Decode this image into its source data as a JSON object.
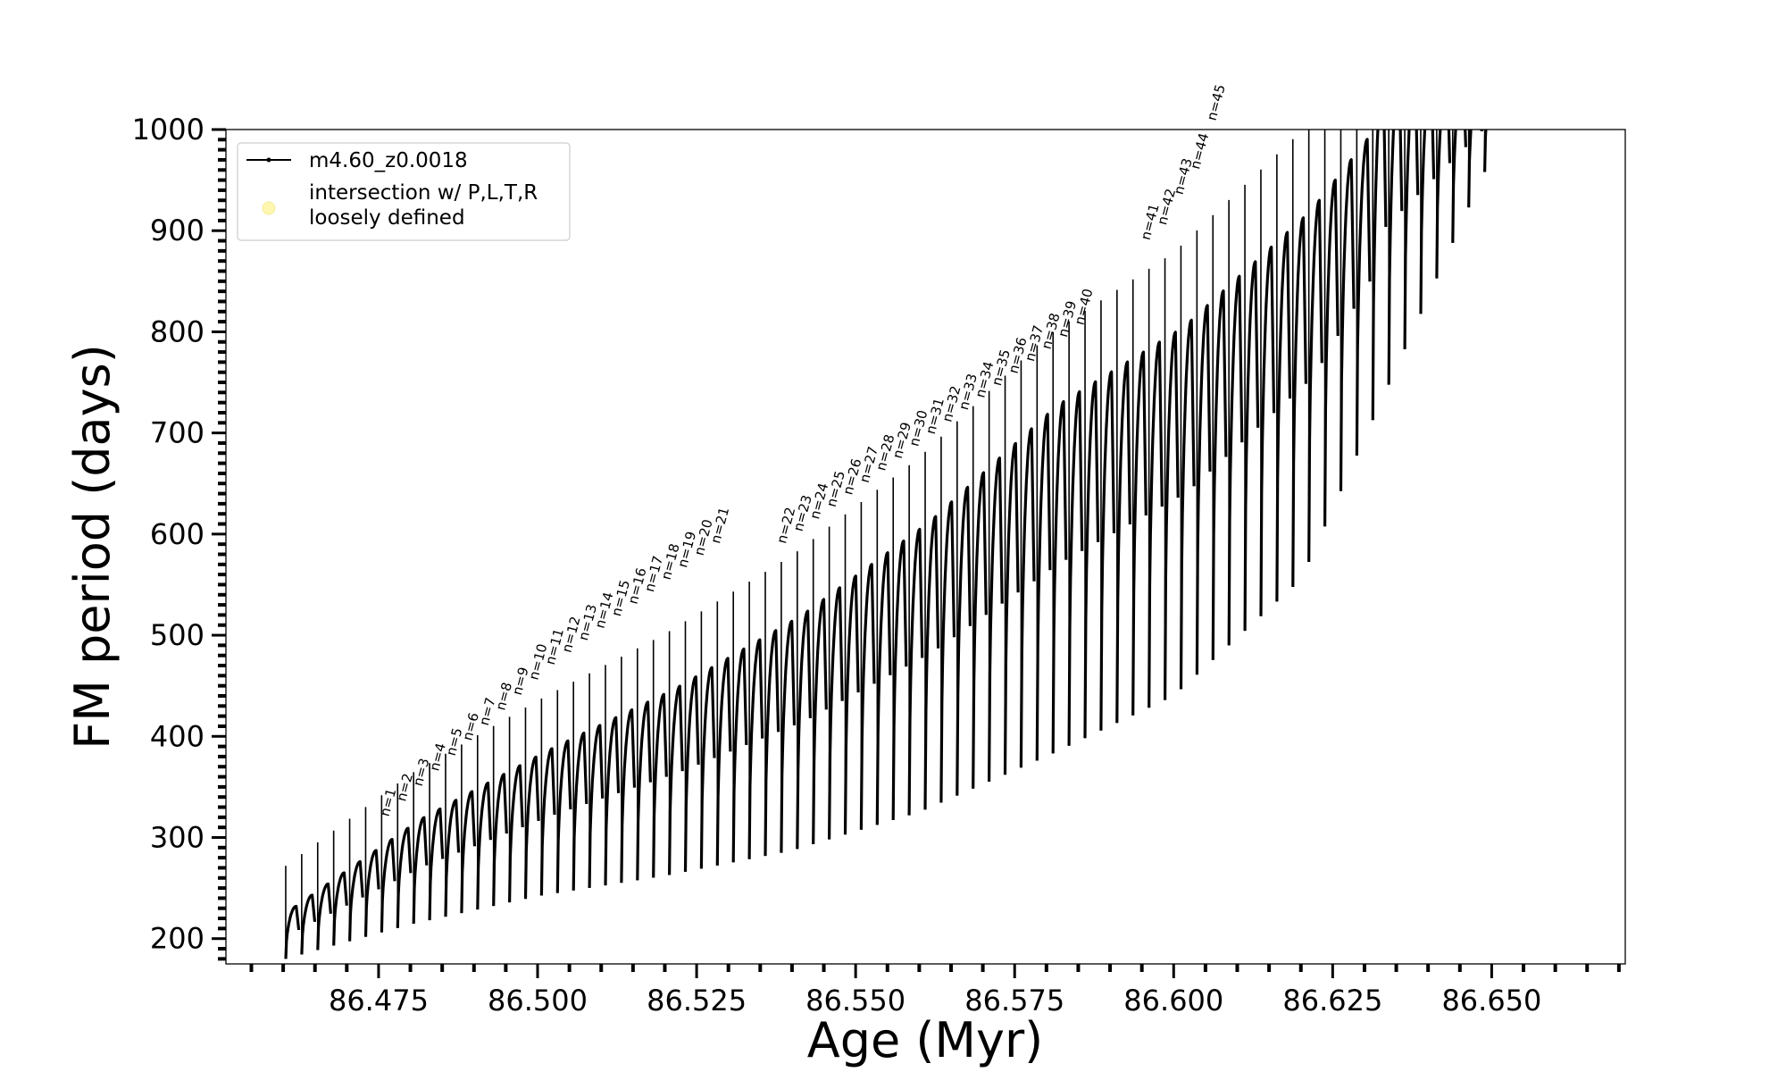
{
  "chart_data": {
    "type": "line",
    "title": "",
    "xlabel": "Age (Myr)",
    "ylabel": "FM period (days)",
    "xlim": [
      86.451,
      86.671
    ],
    "ylim": [
      175,
      1000
    ],
    "xticks": [
      "86.475",
      "86.500",
      "86.525",
      "86.550",
      "86.575",
      "86.600",
      "86.625",
      "86.650"
    ],
    "yticks": [
      "200",
      "300",
      "400",
      "500",
      "600",
      "700",
      "800",
      "900",
      "1000"
    ],
    "grid": false,
    "legend": {
      "placement": "upper-left",
      "entries": [
        {
          "label": "m4.60_z0.0018",
          "color": "#000000",
          "marker": "line-dot"
        },
        {
          "label": "intersection w/ P,L,T,R\nloosely defined",
          "color": "#fff7b0",
          "marker": "circle"
        }
      ]
    },
    "pulse_cycles": {
      "first_x": 86.4604,
      "last_x": 86.6489,
      "count": 76,
      "lower_envelope": [
        [
          86.4604,
          180
        ],
        [
          86.48,
          214
        ],
        [
          86.5,
          242
        ],
        [
          86.52,
          262
        ],
        [
          86.54,
          287
        ],
        [
          86.56,
          325
        ],
        [
          86.58,
          380
        ],
        [
          86.6,
          440
        ],
        [
          86.62,
          555
        ],
        [
          86.6489,
          958
        ]
      ],
      "upper_envelope": [
        [
          86.4604,
          232
        ],
        [
          86.48,
          318
        ],
        [
          86.5,
          386
        ],
        [
          86.52,
          447
        ],
        [
          86.54,
          520
        ],
        [
          86.56,
          612
        ],
        [
          86.58,
          727
        ],
        [
          86.6,
          805
        ],
        [
          86.62,
          920
        ],
        [
          86.63,
          1000
        ]
      ]
    },
    "annotations": [
      {
        "text": "n=1",
        "x": 86.4766,
        "y": 320
      },
      {
        "text": "n=2",
        "x": 86.4792,
        "y": 335
      },
      {
        "text": "n=3",
        "x": 86.4818,
        "y": 350
      },
      {
        "text": "n=4",
        "x": 86.4844,
        "y": 365
      },
      {
        "text": "n=5",
        "x": 86.487,
        "y": 380
      },
      {
        "text": "n=6",
        "x": 86.4896,
        "y": 395
      },
      {
        "text": "n=7",
        "x": 86.4922,
        "y": 410
      },
      {
        "text": "n=8",
        "x": 86.4948,
        "y": 425
      },
      {
        "text": "n=9",
        "x": 86.4974,
        "y": 440
      },
      {
        "text": "n=10",
        "x": 86.5,
        "y": 455
      },
      {
        "text": "n=11",
        "x": 86.5026,
        "y": 470
      },
      {
        "text": "n=12",
        "x": 86.5052,
        "y": 482
      },
      {
        "text": "n=13",
        "x": 86.5078,
        "y": 494
      },
      {
        "text": "n=14",
        "x": 86.5104,
        "y": 506
      },
      {
        "text": "n=15",
        "x": 86.513,
        "y": 518
      },
      {
        "text": "n=16",
        "x": 86.5156,
        "y": 530
      },
      {
        "text": "n=17",
        "x": 86.5182,
        "y": 542
      },
      {
        "text": "n=18",
        "x": 86.5208,
        "y": 554
      },
      {
        "text": "n=19",
        "x": 86.5234,
        "y": 566
      },
      {
        "text": "n=20",
        "x": 86.526,
        "y": 578
      },
      {
        "text": "n=21",
        "x": 86.5286,
        "y": 590
      },
      {
        "text": "n=22",
        "x": 86.539,
        "y": 590
      },
      {
        "text": "n=23",
        "x": 86.5416,
        "y": 602
      },
      {
        "text": "n=24",
        "x": 86.5442,
        "y": 614
      },
      {
        "text": "n=25",
        "x": 86.5468,
        "y": 626
      },
      {
        "text": "n=26",
        "x": 86.5494,
        "y": 638
      },
      {
        "text": "n=27",
        "x": 86.552,
        "y": 650
      },
      {
        "text": "n=28",
        "x": 86.5546,
        "y": 662
      },
      {
        "text": "n=29",
        "x": 86.5572,
        "y": 674
      },
      {
        "text": "n=30",
        "x": 86.5598,
        "y": 686
      },
      {
        "text": "n=31",
        "x": 86.5624,
        "y": 698
      },
      {
        "text": "n=32",
        "x": 86.565,
        "y": 710
      },
      {
        "text": "n=33",
        "x": 86.5676,
        "y": 722
      },
      {
        "text": "n=34",
        "x": 86.5702,
        "y": 734
      },
      {
        "text": "n=35",
        "x": 86.5728,
        "y": 746
      },
      {
        "text": "n=36",
        "x": 86.5754,
        "y": 758
      },
      {
        "text": "n=37",
        "x": 86.578,
        "y": 770
      },
      {
        "text": "n=38",
        "x": 86.5806,
        "y": 782
      },
      {
        "text": "n=39",
        "x": 86.5832,
        "y": 794
      },
      {
        "text": "n=40",
        "x": 86.5858,
        "y": 806
      },
      {
        "text": "n=41",
        "x": 86.5962,
        "y": 890
      },
      {
        "text": "n=42",
        "x": 86.5988,
        "y": 905
      },
      {
        "text": "n=43",
        "x": 86.6014,
        "y": 935
      },
      {
        "text": "n=44",
        "x": 86.604,
        "y": 960
      },
      {
        "text": "n=45",
        "x": 86.6066,
        "y": 1008
      }
    ]
  }
}
